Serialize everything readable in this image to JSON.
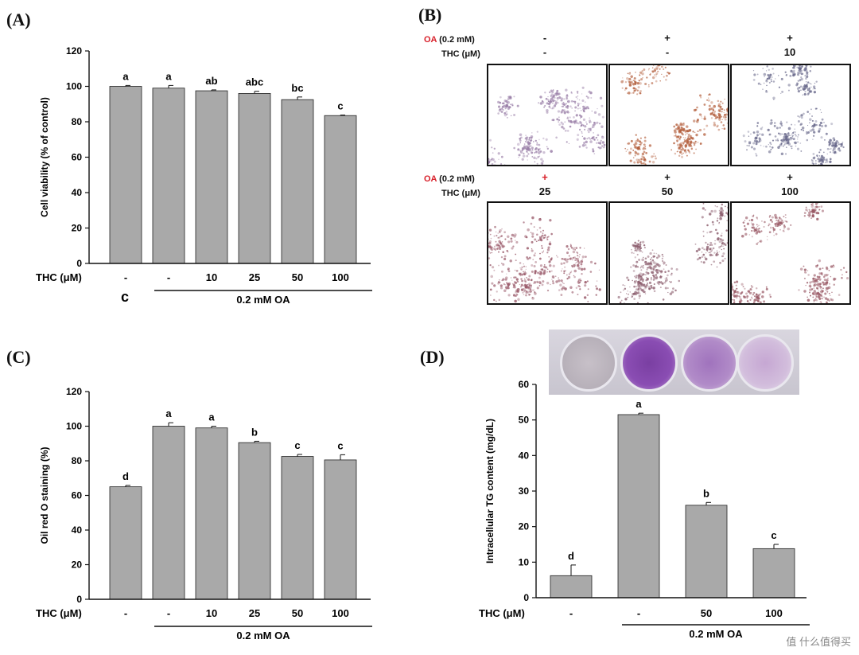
{
  "panels": {
    "A": {
      "letter": "(A)"
    },
    "B": {
      "letter": "(B)"
    },
    "C": {
      "letter": "(C)"
    },
    "D": {
      "letter": "(D)"
    }
  },
  "chart_data": [
    {
      "id": "A",
      "type": "bar",
      "ylabel": "Cell viability (% of control)",
      "ylim": [
        0,
        120
      ],
      "yticks": [
        0,
        20,
        40,
        60,
        80,
        100,
        120
      ],
      "x_row_label": "THC (μM)",
      "categories": [
        "-",
        "-",
        "10",
        "25",
        "50",
        "100"
      ],
      "values": [
        100,
        99,
        97.5,
        96,
        92.5,
        83.5
      ],
      "errors": [
        0.5,
        1.5,
        0.5,
        1.2,
        1.5,
        0.3
      ],
      "letters": [
        "a",
        "a",
        "ab",
        "abc",
        "bc",
        "c"
      ],
      "group_label": "0.2 mM OA",
      "extra_label": "c",
      "bar_color": "#a9a9a9"
    },
    {
      "id": "C",
      "type": "bar",
      "ylabel": "Oil red O staining (%)",
      "ylim": [
        0,
        120
      ],
      "yticks": [
        0,
        20,
        40,
        60,
        80,
        100,
        120
      ],
      "x_row_label": "THC (μM)",
      "categories": [
        "-",
        "-",
        "10",
        "25",
        "50",
        "100"
      ],
      "values": [
        65,
        100,
        99,
        90.5,
        82.5,
        80.5
      ],
      "errors": [
        0.8,
        2.0,
        1.0,
        0.8,
        1.2,
        3.0
      ],
      "letters": [
        "d",
        "a",
        "a",
        "b",
        "c",
        "c"
      ],
      "group_label": "0.2 mM OA",
      "bar_color": "#a9a9a9"
    },
    {
      "id": "D",
      "type": "bar",
      "ylabel": "Intracellular TG content (mg/dL)",
      "ylim": [
        0,
        60
      ],
      "yticks": [
        0,
        10,
        20,
        30,
        40,
        50,
        60
      ],
      "x_row_label": "THC (μM)",
      "categories": [
        "-",
        "-",
        "50",
        "100"
      ],
      "values": [
        6.2,
        51.5,
        26,
        13.8
      ],
      "errors": [
        3.0,
        0.4,
        0.8,
        1.2
      ],
      "letters": [
        "d",
        "a",
        "b",
        "c"
      ],
      "group_label": "0.2 mM OA",
      "bar_color": "#a9a9a9"
    }
  ],
  "microscopy": {
    "oa_label_prefix": "OA",
    "oa_label_suffix": " (0.2 mM)",
    "thc_label": "THC (μM)",
    "rows": [
      {
        "oa": [
          "-",
          "+",
          "+"
        ],
        "thc": [
          "-",
          "-",
          "10"
        ]
      },
      {
        "oa": [
          "+",
          "+",
          "+"
        ],
        "thc": [
          "25",
          "50",
          "100"
        ]
      }
    ],
    "tints": [
      "#9a7fa8",
      "#b4603e",
      "#6a6a8c",
      "#9a5a6a",
      "#8e6070",
      "#9a5a66"
    ]
  },
  "watermark": "值 什么值得买"
}
